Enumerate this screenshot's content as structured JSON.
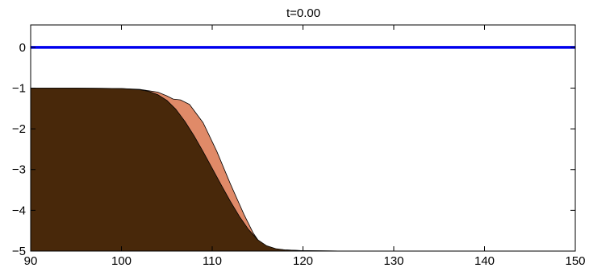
{
  "chart_data": {
    "type": "area",
    "title": "t=0.00",
    "xlabel": "",
    "ylabel": "",
    "xlim": [
      90,
      150
    ],
    "ylim": [
      -5,
      0.55
    ],
    "xticks": [
      90,
      100,
      110,
      120,
      130,
      140,
      150
    ],
    "yticks": [
      0,
      -1,
      -2,
      -3,
      -4,
      -5
    ],
    "grid": false,
    "series": [
      {
        "kind": "line",
        "color": "#0000ee",
        "x": [
          90,
          150
        ],
        "y": [
          0,
          0
        ]
      },
      {
        "kind": "fill",
        "color": "#e08a68",
        "x": [
          90,
          95,
          100,
          102,
          104,
          105,
          105.7,
          106.5,
          107.5,
          109,
          110.5,
          112,
          113.5,
          114.5,
          115.2,
          116,
          117,
          118,
          120,
          125,
          130,
          150
        ],
        "y": [
          -1.0,
          -1.0,
          -1.01,
          -1.03,
          -1.1,
          -1.19,
          -1.27,
          -1.29,
          -1.4,
          -1.85,
          -2.55,
          -3.35,
          -4.1,
          -4.55,
          -4.78,
          -4.9,
          -4.95,
          -4.97,
          -4.99,
          -5.0,
          -5.0,
          -5.0
        ]
      },
      {
        "kind": "fill",
        "color": "#48280a",
        "x": [
          90,
          95,
          100,
          102,
          103,
          104,
          105,
          106,
          107,
          108,
          109,
          110,
          111,
          112,
          113,
          114,
          115,
          116,
          117,
          118,
          120,
          125,
          130,
          150
        ],
        "y": [
          -1.0,
          -1.0,
          -1.01,
          -1.04,
          -1.08,
          -1.16,
          -1.3,
          -1.52,
          -1.82,
          -2.17,
          -2.56,
          -2.97,
          -3.38,
          -3.78,
          -4.15,
          -4.47,
          -4.72,
          -4.87,
          -4.94,
          -4.97,
          -4.99,
          -5.0,
          -5.0,
          -5.0
        ]
      }
    ]
  }
}
